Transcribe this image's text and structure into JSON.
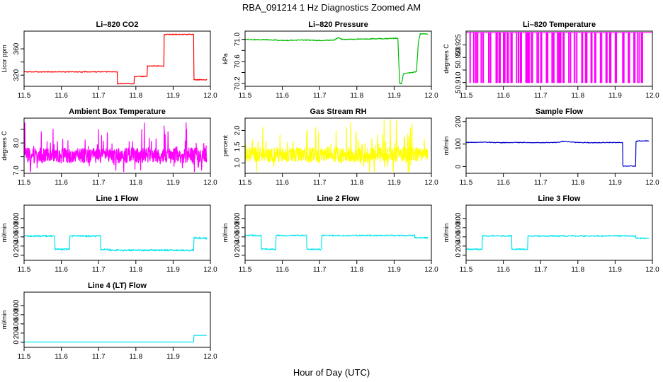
{
  "figure": {
    "title": "RBA_091214  1 Hz Diagnostics Zoomed AM",
    "xlabel": "Hour of Day (UTC)"
  },
  "chart_data": [
    {
      "type": "line",
      "title": "Li–820 CO2",
      "ylabel": "Licor ppm",
      "color": "#ff0000",
      "xlim": [
        11.5,
        12.0
      ],
      "xticks": [
        11.5,
        11.6,
        11.7,
        11.8,
        11.9,
        12.0
      ],
      "ylim": [
        303,
        387
      ],
      "yticks": [
        320,
        340,
        360
      ],
      "ytick_labels": [
        "320",
        "",
        "360"
      ],
      "noise": 0.6,
      "x": [
        11.5,
        11.75,
        11.751,
        11.795,
        11.796,
        11.83,
        11.831,
        11.875,
        11.876,
        11.955,
        11.956,
        11.99
      ],
      "values": [
        325,
        325,
        307,
        307,
        318,
        318,
        334,
        334,
        382,
        382,
        313,
        313
      ]
    },
    {
      "type": "line",
      "title": "Li–820 Pressure",
      "ylabel": "kPa",
      "color": "#00bb00",
      "xlim": [
        11.5,
        12.0
      ],
      "xticks": [
        11.5,
        11.6,
        11.7,
        11.8,
        11.9,
        12.0
      ],
      "ylim": [
        70.15,
        71.15
      ],
      "yticks": [
        70.2,
        70.6,
        71.0
      ],
      "ytick_labels": [
        "70.2",
        "70.6",
        "71.0"
      ],
      "minor_yticks": [
        70.4,
        70.8
      ],
      "noise": 0.008,
      "x": [
        11.5,
        11.58,
        11.6,
        11.65,
        11.7,
        11.74,
        11.75,
        11.76,
        11.85,
        11.9,
        11.91,
        11.915,
        11.92,
        11.925,
        11.95,
        11.96,
        11.965,
        11.97,
        11.99
      ],
      "values": [
        71.0,
        70.99,
        70.98,
        70.99,
        70.98,
        70.99,
        71.03,
        71.0,
        71.01,
        71.02,
        71.02,
        70.2,
        70.2,
        70.38,
        70.4,
        70.42,
        70.95,
        71.1,
        71.1
      ]
    },
    {
      "type": "line",
      "title": "Li–820 Temperature",
      "ylabel": "degrees C",
      "color": "#ff00ff",
      "xlim": [
        11.5,
        12.0
      ],
      "xticks": [
        11.5,
        11.6,
        11.7,
        11.8,
        11.9,
        12.0
      ],
      "ylim": [
        50.9085,
        50.9305
      ],
      "yticks": [
        50.91,
        50.915,
        50.92,
        50.925
      ],
      "ytick_labels": [
        "50.910",
        "",
        "50.920",
        "50.925"
      ],
      "square_wave": true,
      "baseline": 50.93,
      "drop_value": 50.91,
      "x": [
        11.51,
        11.52,
        11.525,
        11.53,
        11.54,
        11.545,
        11.56,
        11.565,
        11.58,
        11.582,
        11.588,
        11.59,
        11.6,
        11.602,
        11.61,
        11.612,
        11.62,
        11.622,
        11.635,
        11.64,
        11.645,
        11.648,
        11.66,
        11.662,
        11.665,
        11.668,
        11.675,
        11.677,
        11.69,
        11.692,
        11.7,
        11.702,
        11.715,
        11.717,
        11.73,
        11.734,
        11.745,
        11.747,
        11.75,
        11.752,
        11.76,
        11.762,
        11.775,
        11.78,
        11.79,
        11.795,
        11.81,
        11.812,
        11.82,
        11.822,
        11.835,
        11.837,
        11.845,
        11.847,
        11.86,
        11.862,
        11.875,
        11.877,
        11.885,
        11.888,
        11.9,
        11.902,
        11.92,
        11.922,
        11.935,
        11.937,
        11.95,
        11.952,
        11.96,
        11.962,
        11.97,
        11.972
      ]
    },
    {
      "type": "line",
      "title": "Ambient Box Temperature",
      "ylabel": "degrees C",
      "color": "#ff00ff",
      "xlim": [
        11.5,
        12.0
      ],
      "xticks": [
        11.5,
        11.6,
        11.7,
        11.8,
        11.9,
        12.0
      ],
      "ylim": [
        6.9,
        8.9
      ],
      "yticks": [
        7.0,
        7.5,
        8.0,
        8.5
      ],
      "ytick_labels": [
        "7.0",
        "",
        "8.0",
        ""
      ],
      "noise_band": true,
      "base": 7.55,
      "spread": 0.55,
      "spike": 1.0
    },
    {
      "type": "line",
      "title": "Gas Stream RH",
      "ylabel": "percent",
      "color": "#ffff00",
      "xlim": [
        11.5,
        12.0
      ],
      "xticks": [
        11.5,
        11.6,
        11.7,
        11.8,
        11.9,
        12.0
      ],
      "ylim": [
        0.68,
        2.38
      ],
      "yticks": [
        1.0,
        1.5,
        2.0
      ],
      "ytick_labels": [
        "1.0",
        "1.5",
        "2.0"
      ],
      "noise_band": true,
      "base": 1.25,
      "spread": 0.45,
      "spike": 0.95
    },
    {
      "type": "line",
      "title": "Sample Flow",
      "ylabel": "ml/min",
      "color": "#0000cc",
      "xlim": [
        11.5,
        12.0
      ],
      "xticks": [
        11.5,
        11.6,
        11.7,
        11.8,
        11.9,
        12.0
      ],
      "ylim": [
        -30,
        215
      ],
      "yticks": [
        0,
        100,
        200
      ],
      "ytick_labels": [
        "0",
        "100",
        "200"
      ],
      "noise": 1.5,
      "x": [
        11.5,
        11.55,
        11.6,
        11.64,
        11.7,
        11.75,
        11.76,
        11.8,
        11.85,
        11.91,
        11.92,
        11.921,
        11.955,
        11.956,
        11.965,
        11.99
      ],
      "values": [
        107,
        108,
        106,
        107,
        106,
        108,
        112,
        107,
        106,
        107,
        106,
        2,
        2,
        112,
        114,
        114
      ]
    },
    {
      "type": "line",
      "title": "Line 1 Flow",
      "ylabel": "ml/min",
      "color": "#00e5ee",
      "xlim": [
        11.5,
        12.0
      ],
      "xticks": [
        11.5,
        11.6,
        11.7,
        11.8,
        11.9,
        12.0
      ],
      "ylim": [
        -110,
        1090
      ],
      "yticks": [
        0,
        200,
        400,
        600,
        800
      ],
      "ytick_labels": [
        "0",
        "200",
        "400",
        "600",
        "800"
      ],
      "noise": 20,
      "x": [
        11.5,
        11.582,
        11.583,
        11.622,
        11.623,
        11.705,
        11.706,
        11.75,
        11.955,
        11.956,
        11.99
      ],
      "values": [
        420,
        420,
        130,
        130,
        420,
        420,
        130,
        110,
        110,
        380,
        370
      ]
    },
    {
      "type": "line",
      "title": "Line 2 Flow",
      "ylabel": "ml/min",
      "color": "#00e5ee",
      "xlim": [
        11.5,
        12.0
      ],
      "xticks": [
        11.5,
        11.6,
        11.7,
        11.8,
        11.9,
        12.0
      ],
      "ylim": [
        -110,
        1090
      ],
      "yticks": [
        0,
        200,
        400,
        600,
        800
      ],
      "ytick_labels": [
        "0",
        "200",
        "400",
        "600",
        "800"
      ],
      "noise": 15,
      "x": [
        11.5,
        11.543,
        11.544,
        11.582,
        11.583,
        11.665,
        11.666,
        11.705,
        11.706,
        11.955,
        11.956,
        11.99
      ],
      "values": [
        430,
        430,
        130,
        130,
        430,
        430,
        130,
        130,
        430,
        430,
        380,
        380
      ]
    },
    {
      "type": "line",
      "title": "Line 3 Flow",
      "ylabel": "ml/min",
      "color": "#00e5ee",
      "xlim": [
        11.5,
        12.0
      ],
      "xticks": [
        11.5,
        11.6,
        11.7,
        11.8,
        11.9,
        12.0
      ],
      "ylim": [
        -110,
        1090
      ],
      "yticks": [
        0,
        200,
        400,
        600,
        800
      ],
      "ytick_labels": [
        "0",
        "200",
        "400",
        "600",
        "800"
      ],
      "noise": 15,
      "x": [
        11.5,
        11.543,
        11.544,
        11.622,
        11.623,
        11.665,
        11.666,
        11.955,
        11.956,
        11.99
      ],
      "values": [
        130,
        130,
        420,
        420,
        130,
        130,
        420,
        420,
        370,
        370
      ]
    },
    {
      "type": "line",
      "title": "Line 4 (LT) Flow",
      "ylabel": "ml/min",
      "color": "#00e5ee",
      "xlim": [
        11.5,
        12.0
      ],
      "xticks": [
        11.5,
        11.6,
        11.7,
        11.8,
        11.9,
        12.0
      ],
      "ylim": [
        -110,
        1090
      ],
      "yticks": [
        0,
        200,
        400,
        600,
        800
      ],
      "ytick_labels": [
        "0",
        "200",
        "400",
        "600",
        "800"
      ],
      "noise": 0,
      "x": [
        11.5,
        11.955,
        11.956,
        11.99
      ],
      "values": [
        5,
        5,
        150,
        150
      ]
    }
  ]
}
